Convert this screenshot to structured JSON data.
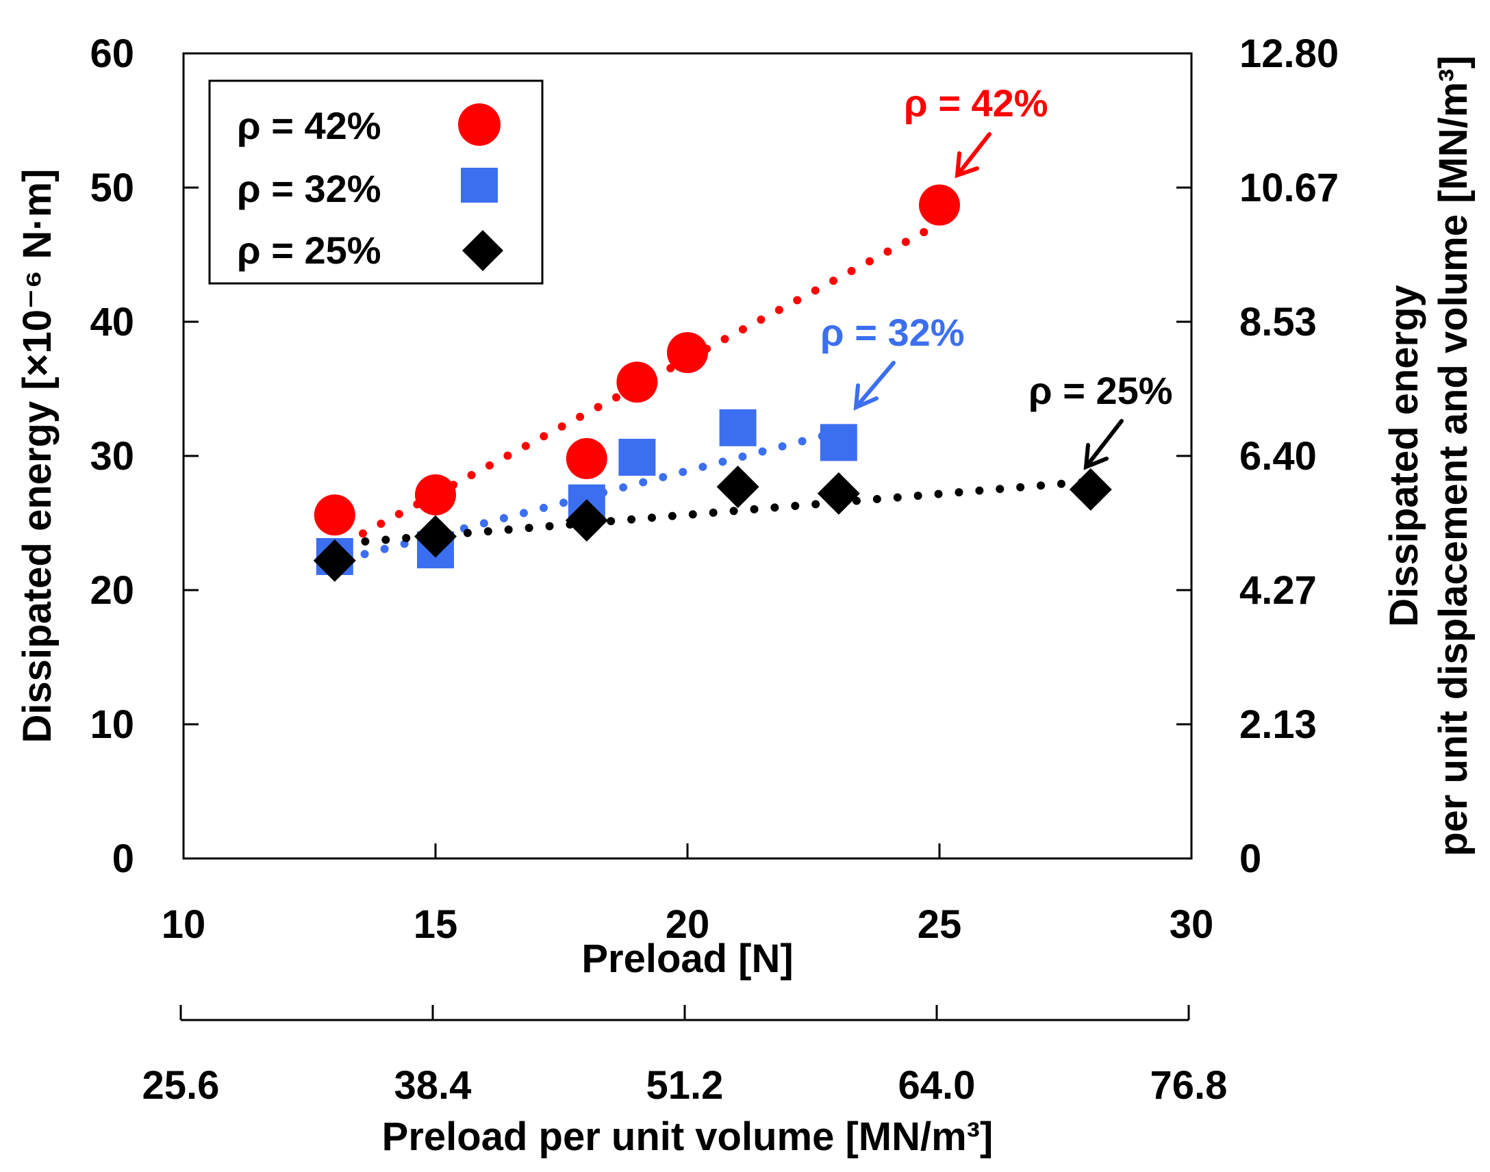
{
  "chart_data": {
    "type": "scatter",
    "xlabel": "Preload [N]",
    "ylabel": "Dissipated energy [×10⁻⁶ N·m]",
    "x2label": "Preload per unit volume [MN/m³]",
    "y2label_line1": "Dissipated energy",
    "y2label_line2": "per unit displacement and volume [MN/m³]",
    "xlim": [
      10,
      30
    ],
    "ylim": [
      0,
      60
    ],
    "x_ticks": [
      "10",
      "15",
      "20",
      "25",
      "30"
    ],
    "y_ticks": [
      "0",
      "10",
      "20",
      "30",
      "40",
      "50",
      "60"
    ],
    "x2_ticks": [
      "25.6",
      "38.4",
      "51.2",
      "64.0",
      "76.8"
    ],
    "y2_ticks": [
      "0",
      "2.13",
      "4.27",
      "6.40",
      "8.53",
      "10.67",
      "12.80"
    ],
    "legend_position": "top-left",
    "series": [
      {
        "name": "ρ = 42%",
        "marker": "circle",
        "color": "#ff0000",
        "points": [
          [
            13,
            25.6
          ],
          [
            15,
            27.1
          ],
          [
            18,
            29.8
          ],
          [
            19,
            35.5
          ],
          [
            20,
            37.7
          ],
          [
            25,
            48.7
          ]
        ],
        "trend_x": [
          13.2,
          25
        ],
        "trend_y": [
          23.5,
          47.3
        ],
        "annotation": "ρ = 42%"
      },
      {
        "name": "ρ = 32%",
        "marker": "square",
        "color": "#3c6ff0",
        "points": [
          [
            13,
            22.5
          ],
          [
            15,
            23.0
          ],
          [
            18,
            26.5
          ],
          [
            19,
            29.9
          ],
          [
            21,
            32.1
          ],
          [
            23,
            31.0
          ]
        ],
        "trend_x": [
          13.2,
          23
        ],
        "trend_y": [
          22.3,
          31.8
        ],
        "annotation": "ρ = 32%"
      },
      {
        "name": "ρ = 25%",
        "marker": "diamond",
        "color": "#000000",
        "points": [
          [
            13,
            22.2
          ],
          [
            15,
            24.0
          ],
          [
            18,
            25.2
          ],
          [
            21,
            27.7
          ],
          [
            23,
            27.2
          ],
          [
            28,
            27.5
          ]
        ],
        "trend_x": [
          13.2,
          28
        ],
        "trend_y": [
          23.5,
          28.1
        ],
        "annotation": "ρ = 25%"
      }
    ]
  }
}
